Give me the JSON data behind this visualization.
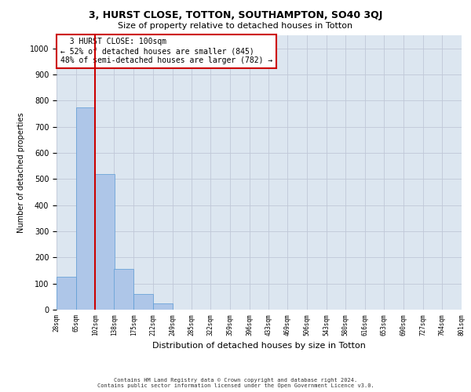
{
  "title1": "3, HURST CLOSE, TOTTON, SOUTHAMPTON, SO40 3QJ",
  "title2": "Size of property relative to detached houses in Totton",
  "xlabel": "Distribution of detached houses by size in Totton",
  "ylabel": "Number of detached properties",
  "annotation_line1": "3 HURST CLOSE: 100sqm",
  "annotation_line2": "← 52% of detached houses are smaller (845)",
  "annotation_line3": "48% of semi-detached houses are larger (782) →",
  "bin_edges": [
    28,
    65,
    102,
    138,
    175,
    212,
    249,
    285,
    322,
    359,
    396,
    433,
    469,
    506,
    543,
    580,
    616,
    653,
    690,
    727,
    764
  ],
  "bin_counts": [
    127,
    775,
    520,
    155,
    60,
    25,
    0,
    0,
    0,
    0,
    0,
    0,
    0,
    0,
    0,
    0,
    0,
    0,
    0,
    0
  ],
  "bar_color": "#aec6e8",
  "bar_edge_color": "#5b9bd5",
  "vline_color": "#cc0000",
  "vline_x": 2,
  "annotation_box_edge_color": "#cc0000",
  "annotation_box_face_color": "#ffffff",
  "grid_color": "#c0c8d8",
  "background_color": "#dce6f0",
  "footer_line1": "Contains HM Land Registry data © Crown copyright and database right 2024.",
  "footer_line2": "Contains public sector information licensed under the Open Government Licence v3.0.",
  "ylim": [
    0,
    1050
  ],
  "yticks": [
    0,
    100,
    200,
    300,
    400,
    500,
    600,
    700,
    800,
    900,
    1000
  ]
}
